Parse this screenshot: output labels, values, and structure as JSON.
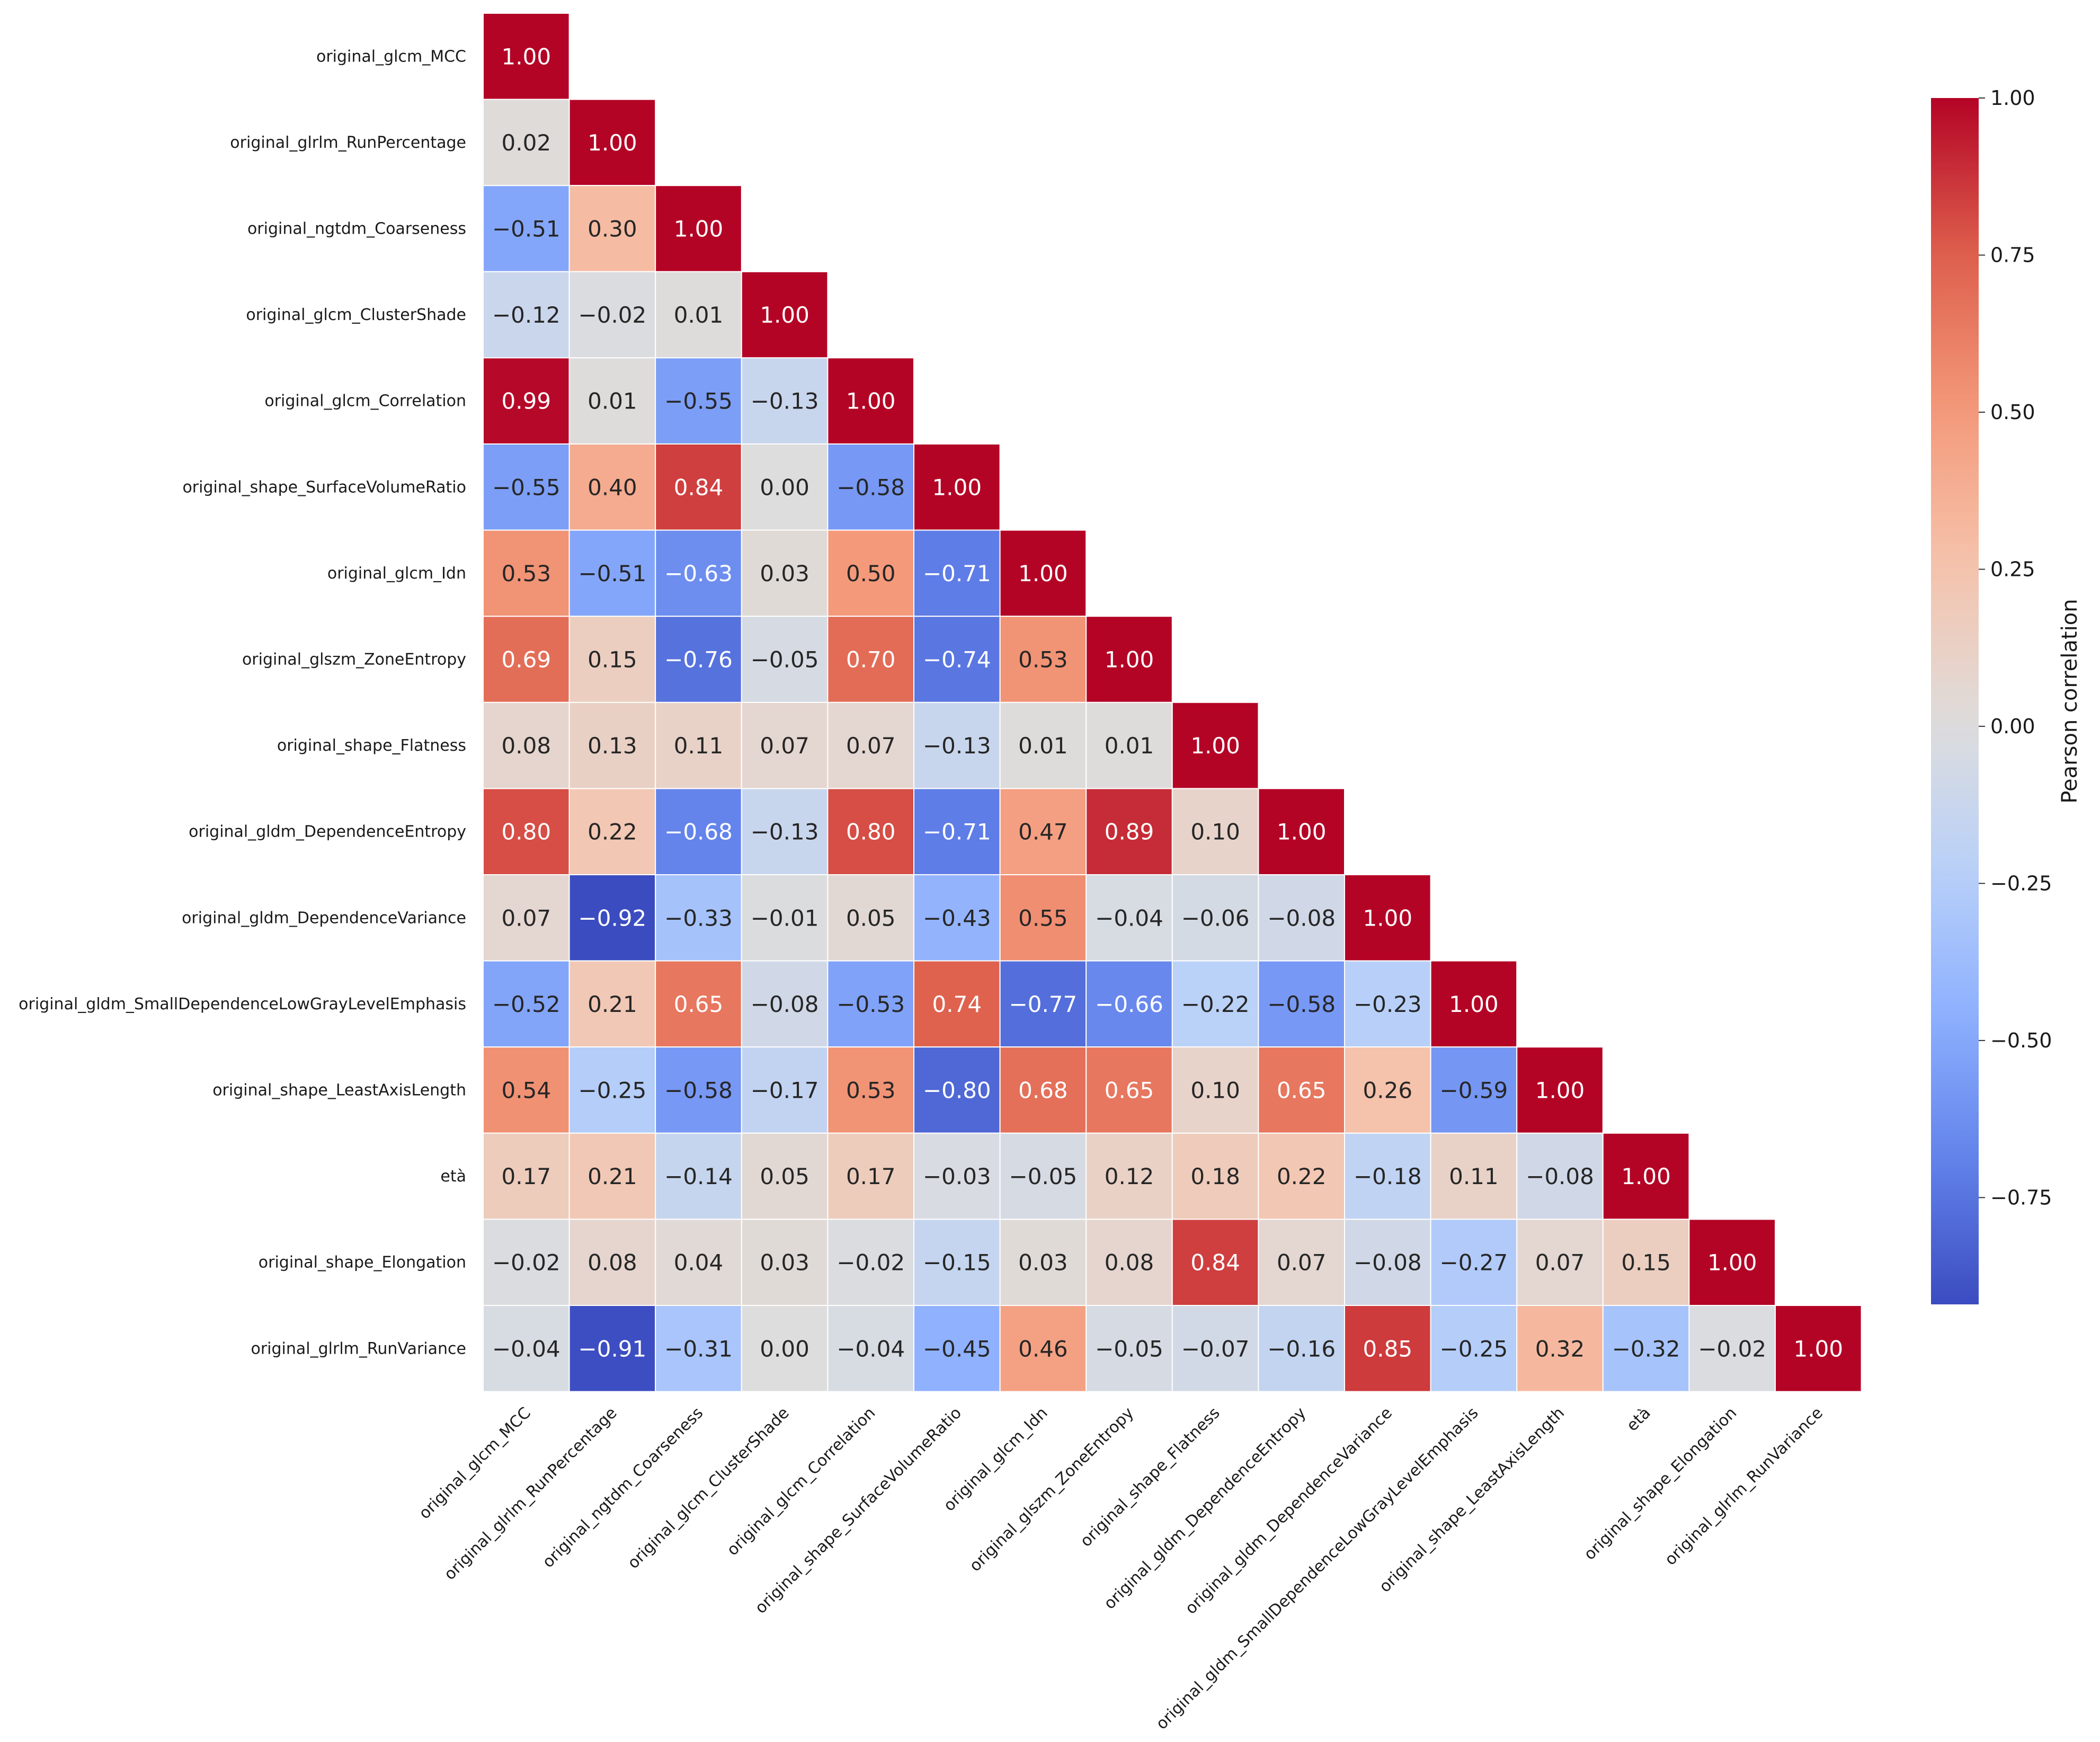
{
  "chart_data": {
    "type": "heatmap",
    "variables": [
      "original_glcm_MCC",
      "original_glrlm_RunPercentage",
      "original_ngtdm_Coarseness",
      "original_glcm_ClusterShade",
      "original_glcm_Correlation",
      "original_shape_SurfaceVolumeRatio",
      "original_glcm_Idn",
      "original_glszm_ZoneEntropy",
      "original_shape_Flatness",
      "original_gldm_DependenceEntropy",
      "original_gldm_DependenceVariance",
      "original_gldm_SmallDependenceLowGrayLevelEmphasis",
      "original_shape_LeastAxisLength",
      "età",
      "original_shape_Elongation",
      "original_glrlm_RunVariance"
    ],
    "matrix_lower": [
      [
        "1.00"
      ],
      [
        "0.02",
        "1.00"
      ],
      [
        "−0.51",
        "0.30",
        "1.00"
      ],
      [
        "−0.12",
        "−0.02",
        "0.01",
        "1.00"
      ],
      [
        "0.99",
        "0.01",
        "−0.55",
        "−0.13",
        "1.00"
      ],
      [
        "−0.55",
        "0.40",
        "0.84",
        "0.00",
        "−0.58",
        "1.00"
      ],
      [
        "0.53",
        "−0.51",
        "−0.63",
        "0.03",
        "0.50",
        "−0.71",
        "1.00"
      ],
      [
        "0.69",
        "0.15",
        "−0.76",
        "−0.05",
        "0.70",
        "−0.74",
        "0.53",
        "1.00"
      ],
      [
        "0.08",
        "0.13",
        "0.11",
        "0.07",
        "0.07",
        "−0.13",
        "0.01",
        "0.01",
        "1.00"
      ],
      [
        "0.80",
        "0.22",
        "−0.68",
        "−0.13",
        "0.80",
        "−0.71",
        "0.47",
        "0.89",
        "0.10",
        "1.00"
      ],
      [
        "0.07",
        "−0.92",
        "−0.33",
        "−0.01",
        "0.05",
        "−0.43",
        "0.55",
        "−0.04",
        "−0.06",
        "−0.08",
        "1.00"
      ],
      [
        "−0.52",
        "0.21",
        "0.65",
        "−0.08",
        "−0.53",
        "0.74",
        "−0.77",
        "−0.66",
        "−0.22",
        "−0.58",
        "−0.23",
        "1.00"
      ],
      [
        "0.54",
        "−0.25",
        "−0.58",
        "−0.17",
        "0.53",
        "−0.80",
        "0.68",
        "0.65",
        "0.10",
        "0.65",
        "0.26",
        "−0.59",
        "1.00"
      ],
      [
        "0.17",
        "0.21",
        "−0.14",
        "0.05",
        "0.17",
        "−0.03",
        "−0.05",
        "0.12",
        "0.18",
        "0.22",
        "−0.18",
        "0.11",
        "−0.08",
        "1.00"
      ],
      [
        "−0.02",
        "0.08",
        "0.04",
        "0.03",
        "−0.02",
        "−0.15",
        "0.03",
        "0.08",
        "0.84",
        "0.07",
        "−0.08",
        "−0.27",
        "0.07",
        "0.15",
        "1.00"
      ],
      [
        "−0.04",
        "−0.91",
        "−0.31",
        "0.00",
        "−0.04",
        "−0.45",
        "0.46",
        "−0.05",
        "−0.07",
        "−0.16",
        "0.85",
        "−0.25",
        "0.32",
        "−0.32",
        "−0.02",
        "1.00"
      ]
    ],
    "colormap": "coolwarm",
    "vmin": -0.92,
    "vmax": 1.0,
    "colorbar": {
      "label": "Pearson correlation",
      "ticks": [
        "1.00",
        "0.75",
        "0.50",
        "0.25",
        "0.00",
        "−0.25",
        "−0.50",
        "−0.75"
      ]
    },
    "colors": {
      "text_dark": "#262626",
      "text_light": "#ffffff"
    }
  }
}
